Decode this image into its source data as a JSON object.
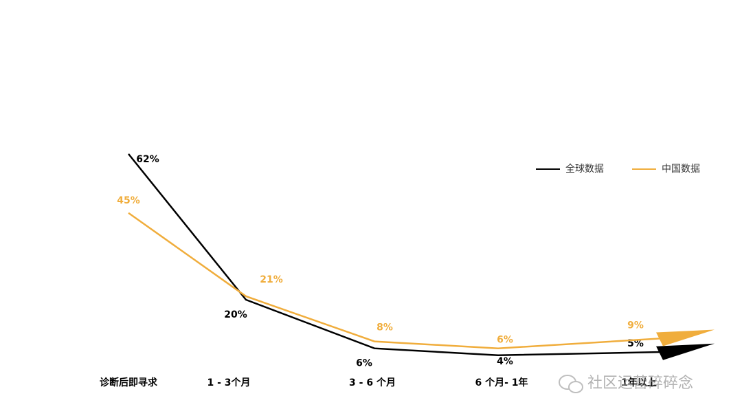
{
  "chart_data": {
    "type": "line",
    "categories": [
      "诊断后即寻求",
      "1 - 3个月",
      "3 - 6 个月",
      "6 个月- 1年",
      "1年以上"
    ],
    "series": [
      {
        "name": "全球数据",
        "color": "#000000",
        "values": [
          62,
          20,
          6,
          4,
          5
        ],
        "value_labels": [
          "62%",
          "20%",
          "6%",
          "4%",
          "5%"
        ]
      },
      {
        "name": "中国数据",
        "color": "#f0ad3c",
        "values": [
          45,
          21,
          8,
          6,
          9
        ],
        "value_labels": [
          "45%",
          "21%",
          "8%",
          "6%",
          "9%"
        ]
      }
    ],
    "watermark": "社区运营碎碎念"
  }
}
